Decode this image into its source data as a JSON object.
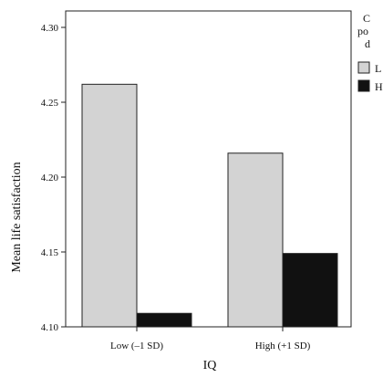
{
  "chart_data": {
    "type": "bar",
    "title": "",
    "xlabel": "IQ",
    "ylabel": "Mean life satisfaction",
    "categories": [
      "Low (–1 SD)",
      "High (+1 SD)"
    ],
    "ylim": [
      4.1,
      4.3
    ],
    "yticks": [
      "4.10",
      "4.15",
      "4.20",
      "4.25",
      "4.30"
    ],
    "series": [
      {
        "name": "L",
        "values": [
          4.262,
          4.216
        ],
        "color": "#d3d3d3"
      },
      {
        "name": "H",
        "values": [
          4.109,
          4.149
        ],
        "color": "#111111"
      }
    ],
    "legend": {
      "title_lines": [
        "C",
        "po",
        "d"
      ],
      "position": "right"
    },
    "grid": false
  }
}
